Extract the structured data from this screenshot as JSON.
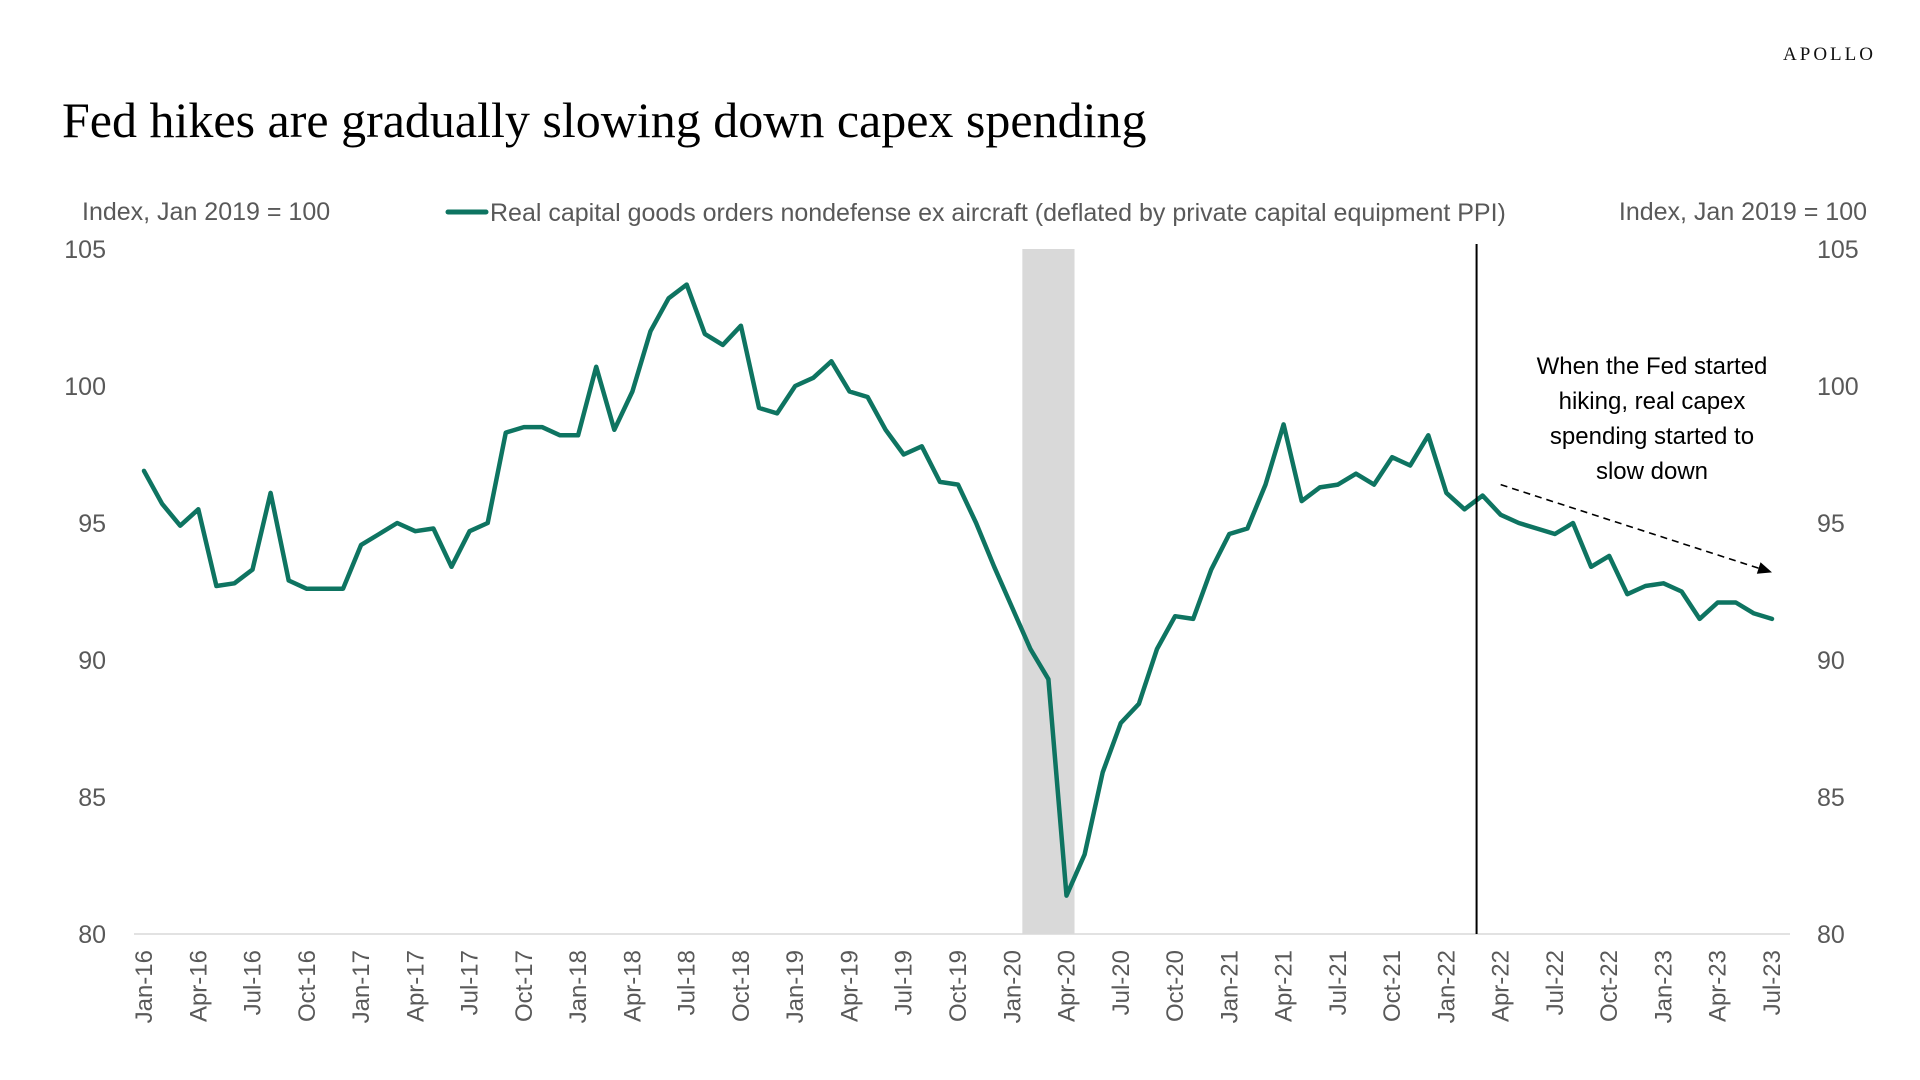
{
  "header": {
    "brand": "APOLLO",
    "title": "Fed hikes are gradually slowing down capex spending"
  },
  "chart_data": {
    "type": "line",
    "left_axis_label": "Index, Jan 2019 = 100",
    "right_axis_label": "Index, Jan 2019 = 100",
    "ylim": [
      80,
      105
    ],
    "y_ticks": [
      80,
      85,
      90,
      95,
      100,
      105
    ],
    "x_tick_labels": [
      "Jan-16",
      "Apr-16",
      "Jul-16",
      "Oct-16",
      "Jan-17",
      "Apr-17",
      "Jul-17",
      "Oct-17",
      "Jan-18",
      "Apr-18",
      "Jul-18",
      "Oct-18",
      "Jan-19",
      "Apr-19",
      "Jul-19",
      "Oct-19",
      "Jan-20",
      "Apr-20",
      "Jul-20",
      "Oct-20",
      "Jan-21",
      "Apr-21",
      "Jul-21",
      "Oct-21",
      "Jan-22",
      "Apr-22",
      "Jul-22",
      "Oct-22",
      "Jan-23",
      "Apr-23",
      "Jul-23"
    ],
    "grid": false,
    "legend_position": "top-center",
    "colors": {
      "series": "#0E7461",
      "shading": "#D9D9D9",
      "axis": "#D9D9D9"
    },
    "shaded_period": {
      "start": "Feb-20",
      "end": "Apr-20"
    },
    "vertical_line": {
      "x": "Mar-22"
    },
    "annotation": {
      "lines": [
        "When the Fed started",
        "hiking, real capex",
        "spending started to",
        "slow down"
      ],
      "arrow_from": {
        "x": "Apr-22",
        "y": 96.4
      },
      "arrow_to": {
        "x": "Jul-23",
        "y": 93.2
      }
    },
    "series": [
      {
        "name": "Real capital goods orders nondefense ex aircraft (deflated by private capital equipment PPI)",
        "x": [
          "Jan-16",
          "Feb-16",
          "Mar-16",
          "Apr-16",
          "May-16",
          "Jun-16",
          "Jul-16",
          "Aug-16",
          "Sep-16",
          "Oct-16",
          "Nov-16",
          "Dec-16",
          "Jan-17",
          "Feb-17",
          "Mar-17",
          "Apr-17",
          "May-17",
          "Jun-17",
          "Jul-17",
          "Aug-17",
          "Sep-17",
          "Oct-17",
          "Nov-17",
          "Dec-17",
          "Jan-18",
          "Feb-18",
          "Mar-18",
          "Apr-18",
          "May-18",
          "Jun-18",
          "Jul-18",
          "Aug-18",
          "Sep-18",
          "Oct-18",
          "Nov-18",
          "Dec-18",
          "Jan-19",
          "Feb-19",
          "Mar-19",
          "Apr-19",
          "May-19",
          "Jun-19",
          "Jul-19",
          "Aug-19",
          "Sep-19",
          "Oct-19",
          "Nov-19",
          "Dec-19",
          "Jan-20",
          "Feb-20",
          "Mar-20",
          "Apr-20",
          "May-20",
          "Jun-20",
          "Jul-20",
          "Aug-20",
          "Sep-20",
          "Oct-20",
          "Nov-20",
          "Dec-20",
          "Jan-21",
          "Feb-21",
          "Mar-21",
          "Apr-21",
          "May-21",
          "Jun-21",
          "Jul-21",
          "Aug-21",
          "Sep-21",
          "Oct-21",
          "Nov-21",
          "Dec-21",
          "Jan-22",
          "Feb-22",
          "Mar-22",
          "Apr-22",
          "May-22",
          "Jun-22",
          "Jul-22",
          "Aug-22",
          "Sep-22",
          "Oct-22",
          "Nov-22",
          "Dec-22",
          "Jan-23",
          "Feb-23",
          "Mar-23",
          "Apr-23",
          "May-23",
          "Jun-23",
          "Jul-23"
        ],
        "values": [
          96.9,
          95.7,
          94.9,
          95.5,
          92.7,
          92.8,
          93.3,
          96.1,
          92.9,
          92.6,
          92.6,
          92.6,
          94.2,
          94.6,
          95.0,
          94.7,
          94.8,
          93.4,
          94.7,
          95.0,
          98.3,
          98.5,
          98.5,
          98.2,
          98.2,
          100.7,
          98.4,
          99.8,
          102.0,
          103.2,
          103.7,
          101.9,
          101.5,
          102.2,
          99.2,
          99.0,
          100.0,
          100.3,
          100.9,
          99.8,
          99.6,
          98.4,
          97.5,
          97.8,
          96.5,
          96.4,
          95.0,
          93.4,
          91.9,
          90.4,
          89.3,
          81.4,
          82.9,
          85.9,
          87.7,
          88.4,
          90.4,
          91.6,
          91.5,
          93.3,
          94.6,
          94.8,
          96.4,
          98.6,
          95.8,
          96.3,
          96.4,
          96.8,
          96.4,
          97.4,
          97.1,
          98.2,
          96.1,
          95.5,
          96.0,
          95.3,
          95.0,
          94.8,
          94.6,
          95.0,
          93.4,
          93.8,
          92.4,
          92.7,
          92.8,
          92.5,
          91.5,
          92.1,
          92.1,
          91.7,
          91.5
        ]
      }
    ]
  }
}
